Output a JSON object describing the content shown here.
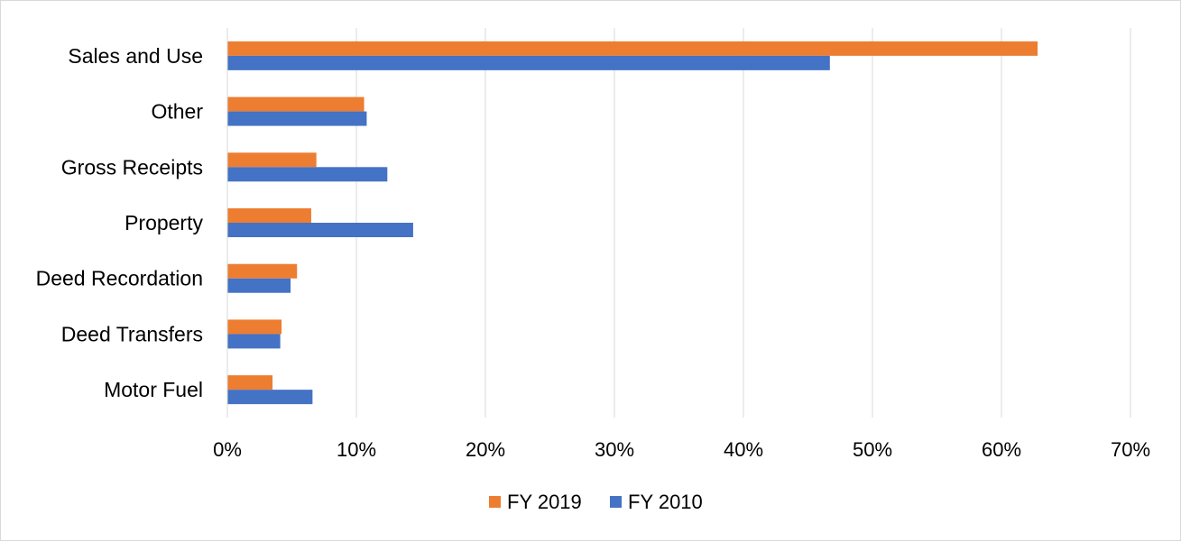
{
  "chart_data": {
    "type": "bar",
    "orientation": "horizontal",
    "categories": [
      "Sales and Use",
      "Other",
      "Gross Receipts",
      "Property",
      "Deed Recordation",
      "Deed Transfers",
      "Motor Fuel"
    ],
    "series": [
      {
        "name": "FY 2019",
        "color": "#ed7d31",
        "values": [
          62.8,
          10.6,
          6.9,
          6.5,
          5.4,
          4.2,
          3.5
        ]
      },
      {
        "name": "FY 2010",
        "color": "#4472c4",
        "values": [
          46.7,
          10.8,
          12.4,
          14.4,
          4.9,
          4.1,
          6.6
        ]
      }
    ],
    "xlim": [
      0,
      70
    ],
    "x_ticks": [
      0,
      10,
      20,
      30,
      40,
      50,
      60,
      70
    ],
    "x_tick_labels": [
      "0%",
      "10%",
      "20%",
      "30%",
      "40%",
      "50%",
      "60%",
      "70%"
    ],
    "title": "",
    "xlabel": "",
    "ylabel": "",
    "grid": "vertical",
    "legend": "bottom-center"
  }
}
